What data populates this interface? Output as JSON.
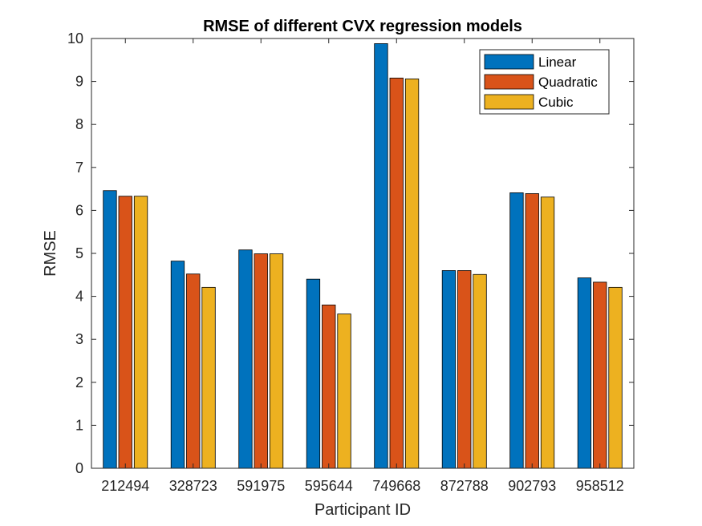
{
  "chart_data": {
    "type": "bar",
    "title": "RMSE of different CVX regression models",
    "xlabel": "Participant ID",
    "ylabel": "RMSE",
    "ylim": [
      0,
      10
    ],
    "yticks": [
      "0",
      "1",
      "2",
      "3",
      "4",
      "5",
      "6",
      "7",
      "8",
      "9",
      "10"
    ],
    "categories": [
      "212494",
      "328723",
      "591975",
      "595644",
      "749668",
      "872788",
      "902793",
      "958512"
    ],
    "series": [
      {
        "name": "Linear",
        "color": "#0072BD",
        "values": [
          6.46,
          4.82,
          5.08,
          4.4,
          9.88,
          4.6,
          6.41,
          4.43
        ]
      },
      {
        "name": "Quadratic",
        "color": "#D95319",
        "values": [
          6.33,
          4.52,
          4.99,
          3.8,
          9.08,
          4.6,
          6.39,
          4.33
        ]
      },
      {
        "name": "Cubic",
        "color": "#EDB120",
        "values": [
          6.33,
          4.21,
          4.99,
          3.59,
          9.06,
          4.51,
          6.31,
          4.21
        ]
      }
    ],
    "legend_position": "top-right",
    "grid": false
  }
}
